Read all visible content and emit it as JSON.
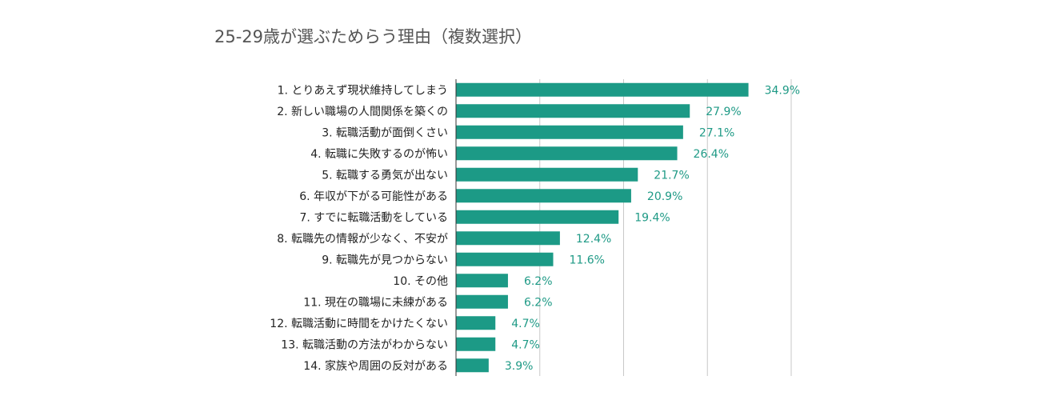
{
  "chart_data": {
    "type": "bar",
    "orientation": "horizontal",
    "title": "25-29歳が選ぶためらう理由（複数選択）",
    "xlabel": "",
    "ylabel": "",
    "xlim": [
      0,
      40
    ],
    "grid": true,
    "value_suffix": "%",
    "categories": [
      "1. とりあえず現状維持してしまう",
      "2. 新しい職場の人間関係を築くの",
      "3. 転職活動が面倒くさい",
      "4. 転職に失敗するのが怖い",
      "5. 転職する勇気が出ない",
      "6. 年収が下がる可能性がある",
      "7. すでに転職活動をしている",
      "8. 転職先の情報が少なく、不安が",
      "9. 転職先が見つからない",
      "10. その他",
      "11. 現在の職場に未練がある",
      "12. 転職活動に時間をかけたくない",
      "13. 転職活動の方法がわからない",
      "14. 家族や周囲の反対がある"
    ],
    "values": [
      34.9,
      27.9,
      27.1,
      26.4,
      21.7,
      20.9,
      19.4,
      12.4,
      11.6,
      6.2,
      6.2,
      4.7,
      4.7,
      3.9
    ],
    "labels": [
      "34.9%",
      "27.9%",
      "27.1%",
      "26.4%",
      "21.7%",
      "20.9%",
      "19.4%",
      "12.4%",
      "11.6%",
      "6.2%",
      "6.2%",
      "4.7%",
      "4.7%",
      "3.9%"
    ],
    "colors": {
      "bar": "#1c9a86",
      "label": "#1f9a86",
      "grid": "#c8c8c8",
      "title": "#555555"
    }
  }
}
